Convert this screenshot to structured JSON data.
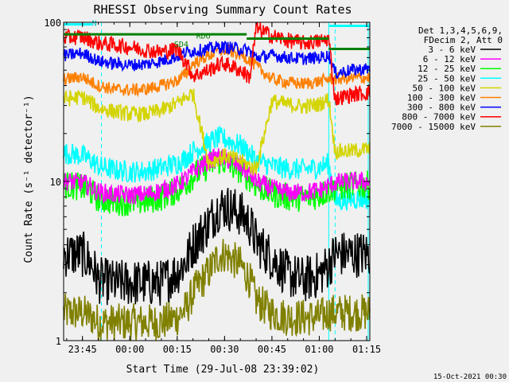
{
  "chart_data": {
    "type": "line",
    "title": "RHESSI Observing Summary Count Rates",
    "xlabel": "Start Time (29-Jul-08 23:39:02)",
    "ylabel": "Count Rate (s⁻¹ detector⁻¹)",
    "y_scale": "log",
    "xlim": [
      "23:39:02",
      "01:16:00"
    ],
    "ylim": [
      1,
      100
    ],
    "x_ticks": [
      "23:45",
      "00:00",
      "00:15",
      "00:30",
      "00:45",
      "01:00",
      "01:15"
    ],
    "y_ticks": [
      "1",
      "10",
      "100"
    ],
    "legend_header": [
      "Det 1,3,4,5,6,9,",
      "FDecim 2, Att 0"
    ],
    "legend_placement": "right",
    "annotations": [
      {
        "text": "N",
        "x": "23:48",
        "y": 95,
        "color": "#00c8c8"
      },
      {
        "text": "SD4",
        "x": "00:14",
        "y": 70,
        "color": "#008000"
      },
      {
        "text": "RDO",
        "x": "00:21",
        "y": 79,
        "color": "#008000"
      }
    ],
    "footer_timestamp": "15-Oct-2021 00:30",
    "x": [
      "23:40",
      "23:45",
      "23:48",
      "23:50",
      "23:55",
      "00:00",
      "00:05",
      "00:10",
      "00:15",
      "00:18",
      "00:20",
      "00:25",
      "00:28",
      "00:30",
      "00:35",
      "00:38",
      "00:40",
      "00:45",
      "00:50",
      "00:55",
      "01:00",
      "01:03",
      "01:05",
      "01:10",
      "01:15"
    ],
    "series": [
      {
        "name": "3 - 6 keV",
        "color": "#000000",
        "values": [
          3.5,
          3.5,
          3,
          2.4,
          2.3,
          2.3,
          2.3,
          2.3,
          2.7,
          3.2,
          4,
          5.5,
          6.8,
          7,
          6.3,
          5.4,
          4.2,
          3.3,
          2.6,
          2.4,
          2.6,
          3,
          3.5,
          3.5,
          3.5
        ]
      },
      {
        "name": "6 - 12 keV",
        "color": "#ff00ff",
        "values": [
          10,
          9.8,
          9.2,
          8.6,
          8.3,
          8.2,
          8.3,
          8.8,
          9.5,
          10.5,
          11.5,
          13.5,
          14.2,
          14,
          12.5,
          11,
          10,
          9,
          8.5,
          8.5,
          8.8,
          9.4,
          9.8,
          10,
          10
        ]
      },
      {
        "name": "12 - 25 keV",
        "color": "#00ff00",
        "values": [
          9.5,
          9.2,
          8.5,
          7.8,
          7.5,
          7.4,
          7.5,
          8,
          8.8,
          9.8,
          10.8,
          12.6,
          13.5,
          13.2,
          11.8,
          10.5,
          9.5,
          8.4,
          8,
          7.9,
          8.2,
          8.8,
          9.2,
          9.4,
          9.5
        ]
      },
      {
        "name": "25 - 50 keV",
        "color": "#00ffff",
        "values": [
          15,
          14.5,
          13.5,
          12.5,
          11.8,
          11.5,
          11.6,
          12.2,
          13,
          14.2,
          15.5,
          17.5,
          18.8,
          18.5,
          16.8,
          15,
          13.5,
          12.5,
          12,
          11.9,
          12.3,
          13,
          7.5,
          7.8,
          7.8
        ]
      },
      {
        "name": "50 - 100 keV",
        "color": "#d4d400",
        "values": [
          33,
          34,
          31,
          29,
          27.5,
          26.5,
          26.5,
          28,
          31,
          34,
          36,
          13,
          14,
          14.5,
          13.5,
          12.5,
          12,
          32,
          30.5,
          29.5,
          30.5,
          33,
          15.5,
          15.5,
          16
        ]
      },
      {
        "name": "100 - 300 keV",
        "color": "#ff8000",
        "values": [
          44,
          45.5,
          42,
          40,
          38,
          37.5,
          38,
          40,
          43,
          48,
          55,
          62,
          66,
          67,
          63,
          58,
          53,
          44,
          42,
          41,
          42.5,
          44,
          44,
          44.5,
          45
        ]
      },
      {
        "name": "300 - 800 keV",
        "color": "#0000ff",
        "values": [
          62,
          64,
          60,
          57,
          55,
          54,
          54.5,
          57,
          61,
          65,
          66,
          68,
          70,
          70,
          68,
          66,
          60,
          62,
          60,
          59,
          60,
          62,
          48,
          50,
          51
        ]
      },
      {
        "name": "800 - 7000 keV",
        "color": "#ff0000",
        "values": [
          80,
          81,
          77,
          74,
          72,
          70,
          67,
          65,
          68,
          55,
          46,
          50,
          54,
          55,
          50,
          45,
          92,
          82,
          77,
          74,
          76,
          79,
          33,
          35,
          36
        ]
      },
      {
        "name": "7000 - 15000 keV",
        "color": "#808000",
        "values": [
          1.5,
          1.5,
          1.4,
          1.3,
          1.3,
          1.3,
          1.3,
          1.3,
          1.4,
          1.6,
          2,
          2.7,
          3.4,
          3.5,
          3,
          2.4,
          1.8,
          1.5,
          1.4,
          1.4,
          1.4,
          1.5,
          1.5,
          1.5,
          1.5
        ]
      }
    ],
    "state_bars": [
      {
        "color": "#00ffff",
        "from": "23:39:02",
        "to": "23:48",
        "y": 97
      },
      {
        "color": "#00ffff",
        "from": "01:03",
        "to": "01:16",
        "y": 95
      },
      {
        "color": "#008000",
        "from": "23:39:02",
        "to": "00:37",
        "y": 84
      },
      {
        "color": "#008000",
        "from": "00:37",
        "to": "01:03",
        "y": 79
      },
      {
        "color": "#008000",
        "from": "01:03",
        "to": "01:16",
        "y": 68
      }
    ],
    "vlines_solid": [
      "23:39:02",
      "01:03",
      "01:15:30"
    ],
    "vlines_dashed": [
      "23:51",
      "01:05",
      "01:16:00"
    ]
  }
}
